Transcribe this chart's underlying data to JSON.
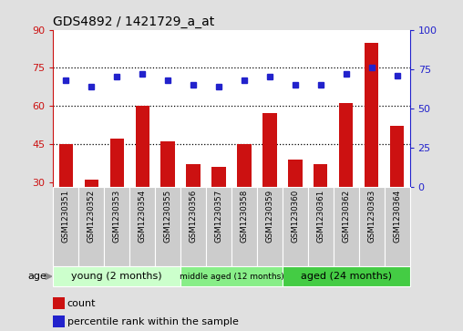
{
  "title": "GDS4892 / 1421729_a_at",
  "samples": [
    "GSM1230351",
    "GSM1230352",
    "GSM1230353",
    "GSM1230354",
    "GSM1230355",
    "GSM1230356",
    "GSM1230357",
    "GSM1230358",
    "GSM1230359",
    "GSM1230360",
    "GSM1230361",
    "GSM1230362",
    "GSM1230363",
    "GSM1230364"
  ],
  "counts": [
    45,
    31,
    47,
    60,
    46,
    37,
    36,
    45,
    57,
    39,
    37,
    61,
    85,
    52
  ],
  "percentiles": [
    68,
    64,
    70,
    72,
    68,
    65,
    64,
    68,
    70,
    65,
    65,
    72,
    76,
    71
  ],
  "ylim_left": [
    28,
    90
  ],
  "ylim_right": [
    0,
    100
  ],
  "yticks_left": [
    30,
    45,
    60,
    75,
    90
  ],
  "yticks_right": [
    0,
    25,
    50,
    75,
    100
  ],
  "bar_color": "#cc1111",
  "dot_color": "#2222cc",
  "hgrid_vals": [
    45,
    60,
    75
  ],
  "groups": [
    {
      "label": "young (2 months)",
      "start": 0,
      "end": 4,
      "color": "#ccffcc"
    },
    {
      "label": "middle aged (12 months)",
      "start": 5,
      "end": 8,
      "color": "#88ee88"
    },
    {
      "label": "aged (24 months)",
      "start": 9,
      "end": 13,
      "color": "#33cc44"
    }
  ],
  "legend_count_label": "count",
  "legend_percentile_label": "percentile rank within the sample",
  "age_label": "age",
  "fig_bg": "#e0e0e0",
  "plot_bg": "#ffffff",
  "xlabel_bg": "#cccccc"
}
